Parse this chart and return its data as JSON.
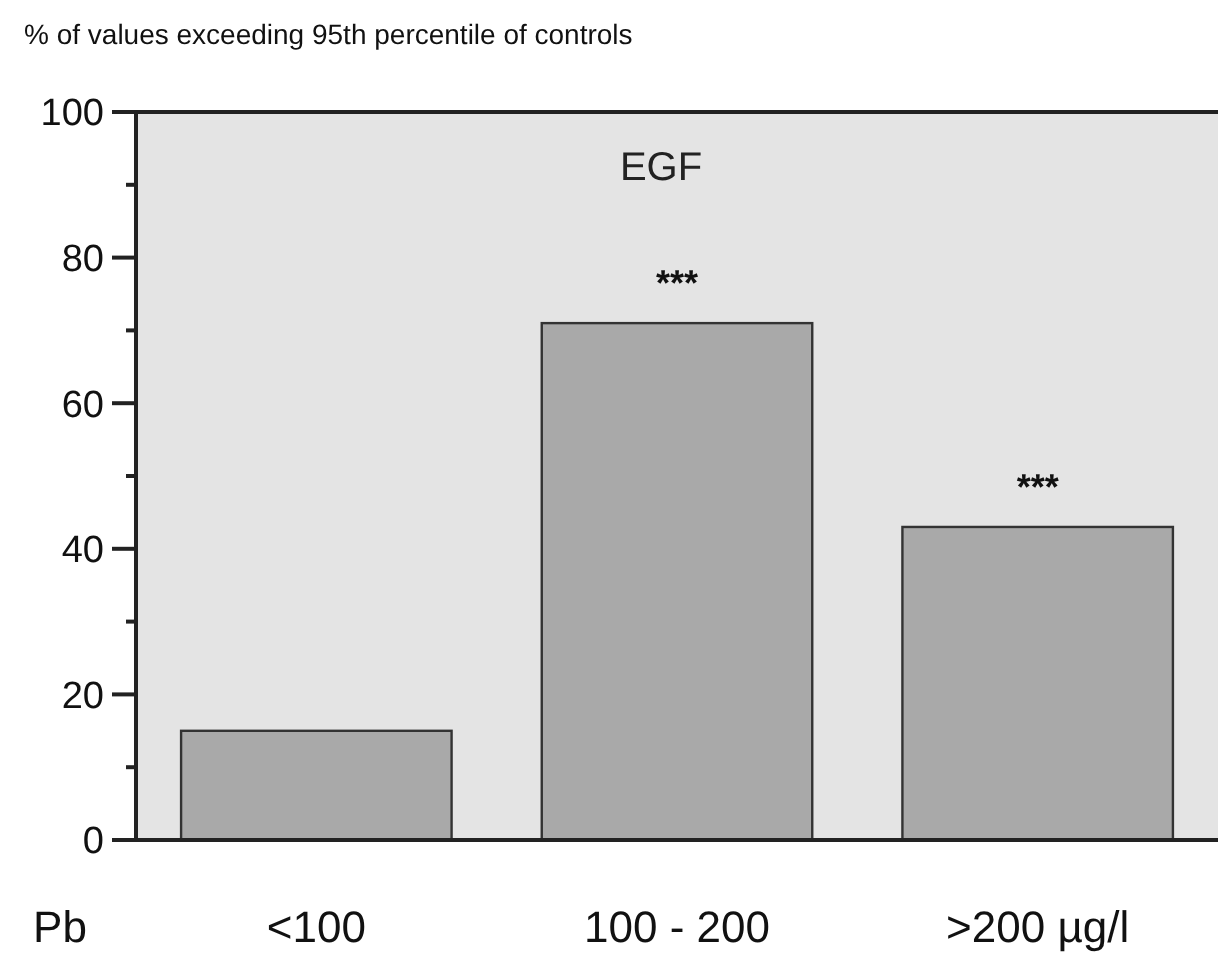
{
  "chart_data": {
    "type": "bar",
    "title": "% of values exceeding 95th percentile of controls",
    "xlabel": "Pb",
    "categories": [
      "<100",
      "100 - 200",
      ">200 µg/l"
    ],
    "values": [
      15,
      71,
      43
    ],
    "color": "#a9a9a9",
    "ylim": [
      0,
      100
    ],
    "yticks": [
      0,
      {
        "value": 10,
        "label": null
      },
      20,
      {
        "value": 30,
        "label": null
      },
      40,
      {
        "value": 50,
        "label": null
      },
      60,
      {
        "value": 70,
        "label": null
      },
      80,
      {
        "value": 90,
        "label": null
      },
      100
    ],
    "annotations": [
      "EGF",
      {
        "text": "***",
        "x": "100 - 200",
        "y": 71
      },
      {
        "text": "***",
        "x": ">200 µg/l",
        "y": 43
      }
    ]
  }
}
